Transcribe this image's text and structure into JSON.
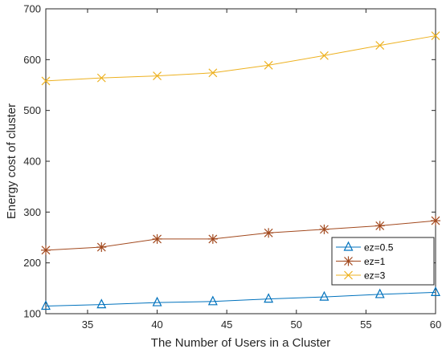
{
  "chart_data": {
    "type": "line",
    "xlabel": "The Number of Users in a Cluster",
    "ylabel": "Energy cost of cluster",
    "xlim": [
      32,
      60
    ],
    "ylim": [
      100,
      700
    ],
    "xticks": [
      35,
      40,
      45,
      50,
      55,
      60
    ],
    "yticks": [
      100,
      200,
      300,
      400,
      500,
      600,
      700
    ],
    "grid": false,
    "legend_position": "lower-right",
    "x": [
      32,
      36,
      40,
      44,
      48,
      52,
      56,
      60
    ],
    "series": [
      {
        "name": "ez=0.5",
        "marker": "triangle",
        "color": "#0072BD",
        "values": [
          115,
          118,
          122,
          124,
          129,
          133,
          138,
          142
        ]
      },
      {
        "name": "ez=1",
        "marker": "asterisk",
        "color": "#A2491E",
        "values": [
          225,
          231,
          247,
          247,
          259,
          266,
          273,
          283
        ]
      },
      {
        "name": "ez=3",
        "marker": "x",
        "color": "#EDB120",
        "values": [
          558,
          564,
          568,
          574,
          589,
          608,
          628,
          647
        ]
      }
    ]
  }
}
